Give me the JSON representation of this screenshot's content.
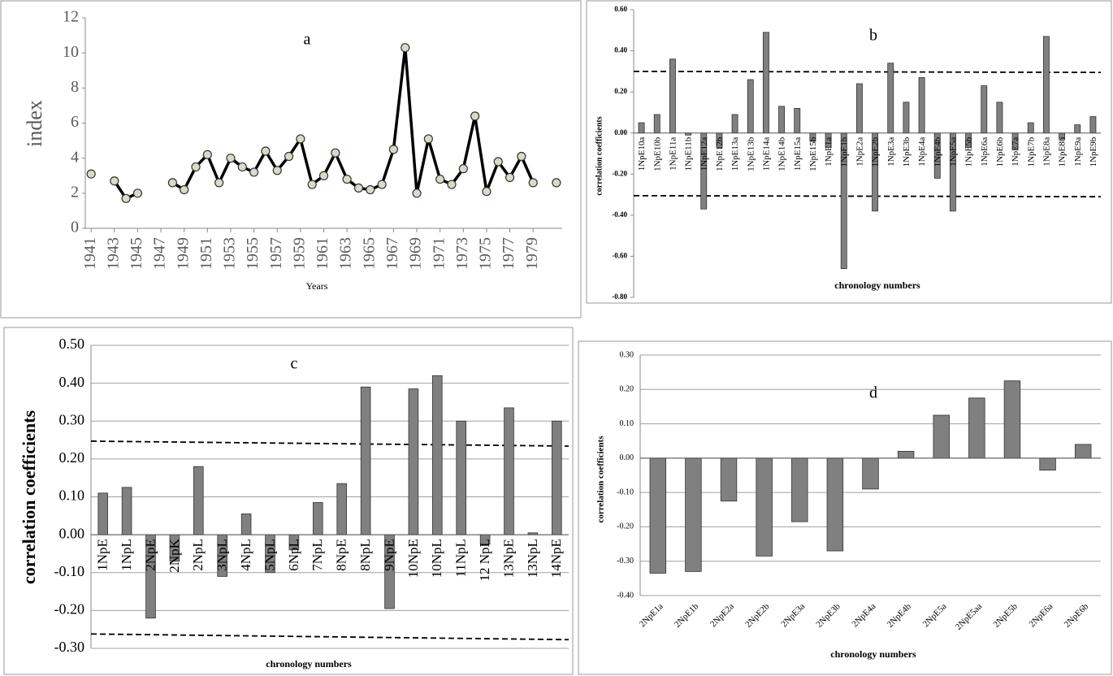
{
  "chart_data": [
    {
      "type": "line",
      "title": "a",
      "ylabel": "index",
      "xlabel": "Years",
      "x": [
        1941,
        1942,
        1943,
        1944,
        1945,
        1946,
        1947,
        1948,
        1949,
        1950,
        1951,
        1952,
        1953,
        1954,
        1955,
        1956,
        1957,
        1958,
        1959,
        1960,
        1961,
        1962,
        1963,
        1964,
        1965,
        1966,
        1967,
        1968,
        1969,
        1970,
        1971,
        1972,
        1973,
        1974,
        1975,
        1976,
        1977,
        1978,
        1979,
        1980,
        1981
      ],
      "values": [
        3.1,
        null,
        2.7,
        1.7,
        2.0,
        null,
        null,
        2.6,
        2.2,
        3.5,
        4.2,
        2.6,
        4.0,
        3.5,
        3.2,
        4.4,
        3.3,
        4.1,
        5.1,
        2.5,
        3.0,
        4.3,
        2.8,
        2.3,
        2.2,
        2.5,
        4.5,
        10.3,
        2.0,
        5.1,
        2.8,
        2.5,
        3.4,
        6.4,
        2.1,
        3.8,
        2.9,
        4.1,
        2.6,
        null,
        2.6
      ],
      "color": "#000000",
      "marker_color": "#d9d9cc",
      "xlim": [
        1940.5,
        1981.5
      ],
      "xticks": [
        1941,
        1943,
        1945,
        1947,
        1949,
        1951,
        1953,
        1955,
        1957,
        1959,
        1961,
        1963,
        1965,
        1967,
        1969,
        1971,
        1973,
        1975,
        1977,
        1979
      ],
      "ylim": [
        0,
        12
      ],
      "yticks": [
        0,
        2,
        4,
        6,
        8,
        10,
        12
      ],
      "grid": false
    },
    {
      "type": "bar",
      "title": "b",
      "ylabel": "correlation coefficients",
      "xlabel": "chronology numbers",
      "categories": [
        "1NpE10a",
        "1NpE10b",
        "1NpE11a",
        "1NpE11b",
        "1NpE12a",
        "1NpE12b",
        "1NpE13a",
        "1NpE13b",
        "1NpE14a",
        "1NpE14b",
        "1NpE15a",
        "1NpE15b",
        "1NpE1a",
        "1NpE1b",
        "1NpE2a",
        "1NpE2b",
        "1NpE3a",
        "1NpE3b",
        "1NpE4a",
        "1NpE4b",
        "1NpE5a",
        "1NpE5b",
        "1NpE6a",
        "1NpE6b",
        "1NpE7a",
        "1NpE7b",
        "1NpE8a",
        "1NpE8b",
        "1NpE9a",
        "1NpE9b"
      ],
      "values": [
        0.05,
        0.09,
        0.36,
        -0.01,
        -0.37,
        -0.07,
        0.09,
        0.26,
        0.49,
        0.13,
        0.12,
        -0.04,
        -0.07,
        -0.66,
        0.24,
        -0.38,
        0.34,
        0.15,
        0.27,
        -0.22,
        -0.38,
        -0.07,
        0.23,
        0.15,
        -0.08,
        0.05,
        0.47,
        -0.03,
        0.04,
        0.08
      ],
      "color": "#808080",
      "ylim": [
        -0.8,
        0.6
      ],
      "yticks": [
        {
          "value": -0.8,
          "label": "-0.80"
        },
        {
          "value": -0.6,
          "label": "-0.60"
        },
        {
          "value": -0.4,
          "label": "-0.40"
        },
        {
          "value": -0.2,
          "label": "-0.20"
        },
        {
          "value": 0,
          "label": "0.00"
        },
        {
          "value": 0.2,
          "label": "0.20"
        },
        {
          "value": 0.4,
          "label": "0.40"
        },
        {
          "value": 0.6,
          "label": "0.60"
        }
      ],
      "reference_lines": [
        [
          0.3,
          0.295
        ],
        [
          -0.305,
          -0.31
        ]
      ],
      "grid": false
    },
    {
      "type": "bar",
      "title": "c",
      "ylabel": "correlation  coefficients",
      "xlabel": "chronology numbers",
      "categories": [
        "1NpE",
        "1NpL",
        "2NpE",
        "2NpK",
        "2NpL",
        "3NpL",
        "4NpL",
        "5NpL",
        "6NpL",
        "7NpL",
        "8NpE",
        "8NpL",
        "9NpE",
        "10NpE",
        "10NpL",
        "11NpL",
        "12 NpL",
        "13NpE",
        "13NpL",
        "14NpE"
      ],
      "values": [
        0.11,
        0.125,
        -0.22,
        -0.07,
        0.18,
        -0.11,
        0.055,
        -0.1,
        -0.04,
        0.085,
        0.135,
        0.39,
        -0.195,
        0.385,
        0.42,
        0.3,
        -0.025,
        0.335,
        0.005,
        0.3
      ],
      "color": "#808080",
      "ylim": [
        -0.3,
        0.5
      ],
      "yticks": [
        {
          "value": -0.3,
          "label": "-0.30"
        },
        {
          "value": -0.2,
          "label": "-0.20"
        },
        {
          "value": -0.1,
          "label": "-0.10"
        },
        {
          "value": 0,
          "label": "0.00"
        },
        {
          "value": 0.1,
          "label": "0.10"
        },
        {
          "value": 0.2,
          "label": "0.20"
        },
        {
          "value": 0.3,
          "label": "0.30"
        },
        {
          "value": 0.4,
          "label": "0.40"
        },
        {
          "value": 0.5,
          "label": "0.50"
        }
      ],
      "reference_lines": [
        [
          0.247,
          0.234
        ],
        [
          -0.262,
          -0.277
        ]
      ],
      "grid": true
    },
    {
      "type": "bar",
      "title": "d",
      "ylabel": "correlation coefficients",
      "xlabel": "chronology numbers",
      "categories": [
        "2NpE1a",
        "2NpE1b",
        "2NpE2a",
        "2NpE2b",
        "2NpE3a",
        "2NpE3b",
        "2NpE4a",
        "2NpE4b",
        "2NpE5a",
        "2NpE5aa",
        "2NpE5b",
        "2NpE6a",
        "2NpE6b"
      ],
      "values": [
        -0.335,
        -0.33,
        -0.125,
        -0.285,
        -0.185,
        -0.27,
        -0.09,
        0.02,
        0.125,
        0.175,
        0.225,
        -0.035,
        0.04
      ],
      "color": "#808080",
      "ylim": [
        -0.4,
        0.3
      ],
      "yticks": [
        {
          "value": -0.4,
          "label": "-0.40"
        },
        {
          "value": -0.3,
          "label": "-0.30"
        },
        {
          "value": -0.2,
          "label": "-0.20"
        },
        {
          "value": -0.1,
          "label": "-0.10"
        },
        {
          "value": 0,
          "label": "0.00"
        },
        {
          "value": 0.1,
          "label": "0.10"
        },
        {
          "value": 0.2,
          "label": "0.20"
        },
        {
          "value": 0.3,
          "label": "0.30"
        }
      ],
      "grid": true
    }
  ]
}
